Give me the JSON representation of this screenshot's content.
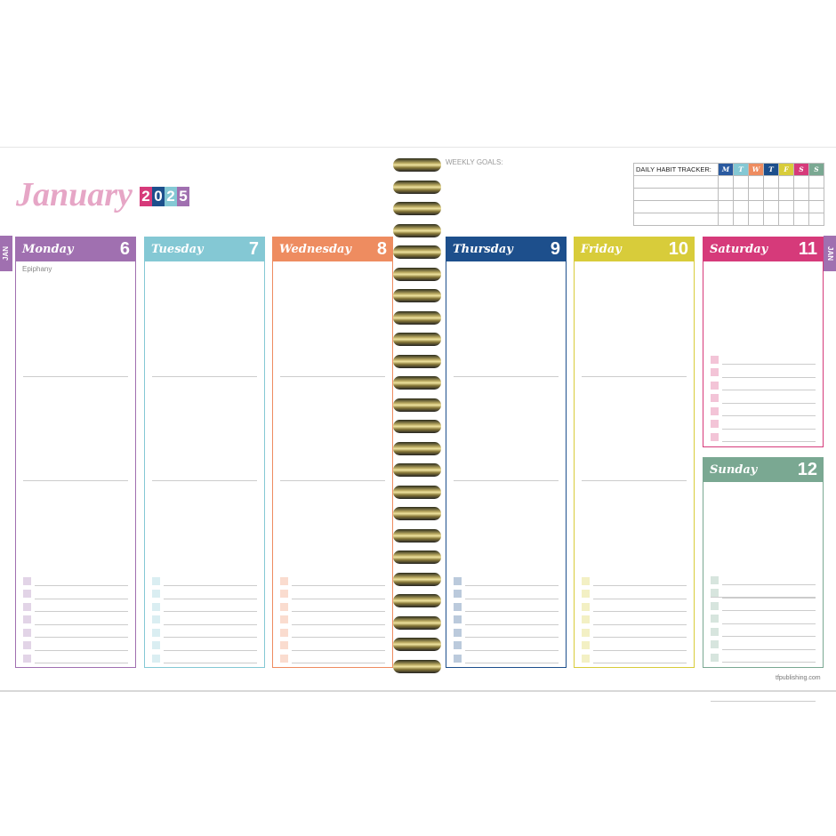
{
  "month": "January",
  "year": {
    "digits": [
      "2",
      "0",
      "2",
      "5"
    ],
    "colors": [
      "#d63a7a",
      "#1d4f8c",
      "#84c8d4",
      "#a070b0"
    ]
  },
  "month_tab": "JAN",
  "weekly_goals_label": "WEEKLY GOALS:",
  "habit_tracker": {
    "label": "DAILY HABIT TRACKER:",
    "days": [
      {
        "l": "M",
        "c": "#2a5aa0"
      },
      {
        "l": "T",
        "c": "#84c8d4"
      },
      {
        "l": "W",
        "c": "#ee8c60"
      },
      {
        "l": "T",
        "c": "#1d4f8c"
      },
      {
        "l": "F",
        "c": "#d8cc3a"
      },
      {
        "l": "S",
        "c": "#d63a7a"
      },
      {
        "l": "S",
        "c": "#7aa892"
      }
    ],
    "rows": 4
  },
  "days": [
    {
      "name": "Monday",
      "date": "6",
      "color": "#a070b0",
      "note": "Epiphany"
    },
    {
      "name": "Tuesday",
      "date": "7",
      "color": "#84c8d4",
      "note": ""
    },
    {
      "name": "Wednesday",
      "date": "8",
      "color": "#ee8c60",
      "note": ""
    },
    {
      "name": "Thursday",
      "date": "9",
      "color": "#1d4f8c",
      "note": ""
    },
    {
      "name": "Friday",
      "date": "10",
      "color": "#d8cc3a",
      "note": ""
    },
    {
      "name": "Saturday",
      "date": "11",
      "color": "#d63a7a",
      "note": ""
    },
    {
      "name": "Sunday",
      "date": "12",
      "color": "#7aa892",
      "note": ""
    }
  ],
  "footer": "tfpublishing.com"
}
